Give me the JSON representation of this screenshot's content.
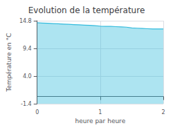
{
  "chart_data": {
    "type": "area",
    "title": "Evolution de la température",
    "xlabel": "heure par heure",
    "ylabel": "Température en °C",
    "color": "#33bbdd",
    "x": [
      0.0,
      0.083,
      0.167,
      0.25,
      0.333,
      0.417,
      0.5,
      0.583,
      0.667,
      0.75,
      0.833,
      0.917,
      1.0,
      1.083,
      1.167,
      1.25,
      1.333,
      1.417,
      1.5,
      1.583,
      1.667,
      1.75,
      1.833,
      1.917,
      2.0
    ],
    "values": [
      14.4,
      14.35,
      14.3,
      14.25,
      14.2,
      14.15,
      14.1,
      14.05,
      14.0,
      13.95,
      13.9,
      13.85,
      13.75,
      13.7,
      13.7,
      13.65,
      13.6,
      13.55,
      13.4,
      13.35,
      13.3,
      13.25,
      13.2,
      13.2,
      13.2
    ],
    "xlim": [
      0,
      2.0
    ],
    "xticks": [
      0,
      1,
      2
    ],
    "ylim": [
      -1.4,
      14.8
    ],
    "yticks": [
      -1.4,
      {
        "value": 4.0,
        "label": "4.0"
      },
      9.4,
      14.8
    ],
    "grid": true
  }
}
